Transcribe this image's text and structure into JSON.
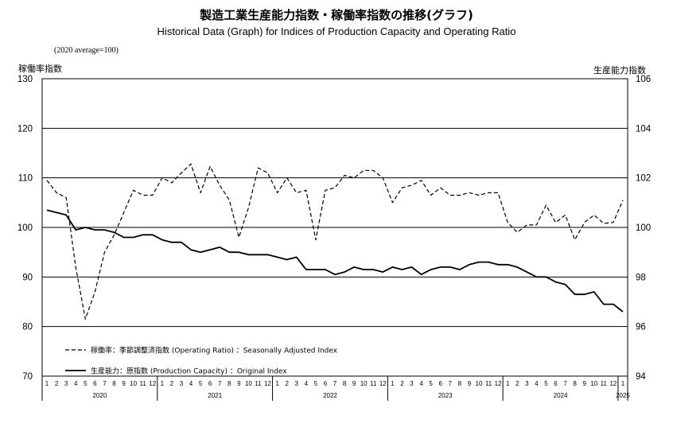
{
  "page": {
    "title_jp": "製造工業生産能力指数・稼働率指数の推移(グラフ)",
    "title_en": "Historical Data (Graph) for Indices of Production Capacity and Operating Ratio",
    "base_note": "(2020 average=100)"
  },
  "chart_data": {
    "type": "line",
    "left_axis_title": "稼働率指数",
    "right_axis_title": "生産能力指数",
    "left_ylim": [
      70,
      130
    ],
    "left_ticks": [
      "70",
      "80",
      "90",
      "100",
      "110",
      "120",
      "130"
    ],
    "right_ylim": [
      94,
      106
    ],
    "right_ticks": [
      "94",
      "96",
      "98",
      "100",
      "102",
      "104",
      "106"
    ],
    "months": [
      "1",
      "2",
      "3",
      "4",
      "5",
      "6",
      "7",
      "8",
      "9",
      "10",
      "11",
      "12",
      "1",
      "2",
      "3",
      "4",
      "5",
      "6",
      "7",
      "8",
      "9",
      "10",
      "11",
      "12",
      "1",
      "2",
      "3",
      "4",
      "5",
      "6",
      "7",
      "8",
      "9",
      "10",
      "11",
      "12",
      "1",
      "2",
      "3",
      "4",
      "5",
      "6",
      "7",
      "8",
      "9",
      "10",
      "11",
      "12",
      "1",
      "2",
      "3",
      "4",
      "5",
      "6",
      "7",
      "8",
      "9",
      "10",
      "11",
      "12",
      "1"
    ],
    "years": [
      {
        "label": "2020",
        "start": 0,
        "count": 12
      },
      {
        "label": "2021",
        "start": 12,
        "count": 12
      },
      {
        "label": "2022",
        "start": 24,
        "count": 12
      },
      {
        "label": "2023",
        "start": 36,
        "count": 12
      },
      {
        "label": "2024",
        "start": 48,
        "count": 12
      },
      {
        "label": "2025",
        "start": 60,
        "count": 1
      }
    ],
    "grid": true,
    "series": [
      {
        "name": "稼働率：季節調整済指数 (Operating Ratio) ：Seasonally Adjusted Index",
        "axis": "left",
        "style": "dashed",
        "values": [
          109.5,
          107.0,
          106.0,
          92.0,
          81.5,
          87.0,
          95.0,
          98.5,
          103.0,
          107.5,
          106.5,
          106.5,
          110.0,
          109.0,
          111.0,
          112.8,
          107.0,
          112.3,
          108.5,
          105.5,
          98.0,
          104.0,
          112.0,
          111.0,
          107.0,
          110.0,
          107.0,
          107.5,
          97.5,
          107.5,
          108.0,
          110.5,
          110.0,
          111.5,
          111.5,
          110.0,
          105.0,
          108.0,
          108.5,
          109.5,
          106.5,
          108.0,
          106.5,
          106.5,
          107.0,
          106.5,
          107.0,
          107.0,
          101.0,
          99.0,
          100.5,
          100.5,
          104.5,
          101.0,
          102.5,
          97.5,
          101.0,
          102.5,
          100.8,
          101.0,
          105.5
        ]
      },
      {
        "name": "生産能力：原指数 (Production Capacity) ：Original Index",
        "axis": "right",
        "style": "solid",
        "values": [
          100.7,
          100.6,
          100.5,
          99.9,
          100.0,
          99.9,
          99.9,
          99.8,
          99.6,
          99.6,
          99.7,
          99.7,
          99.5,
          99.4,
          99.4,
          99.1,
          99.0,
          99.1,
          99.2,
          99.0,
          99.0,
          98.9,
          98.9,
          98.9,
          98.8,
          98.7,
          98.8,
          98.3,
          98.3,
          98.3,
          98.1,
          98.2,
          98.4,
          98.3,
          98.3,
          98.2,
          98.4,
          98.3,
          98.4,
          98.1,
          98.3,
          98.4,
          98.4,
          98.3,
          98.5,
          98.6,
          98.6,
          98.5,
          98.5,
          98.4,
          98.2,
          98.0,
          98.0,
          97.8,
          97.7,
          97.3,
          97.3,
          97.4,
          96.9,
          96.9,
          96.6
        ]
      }
    ]
  }
}
